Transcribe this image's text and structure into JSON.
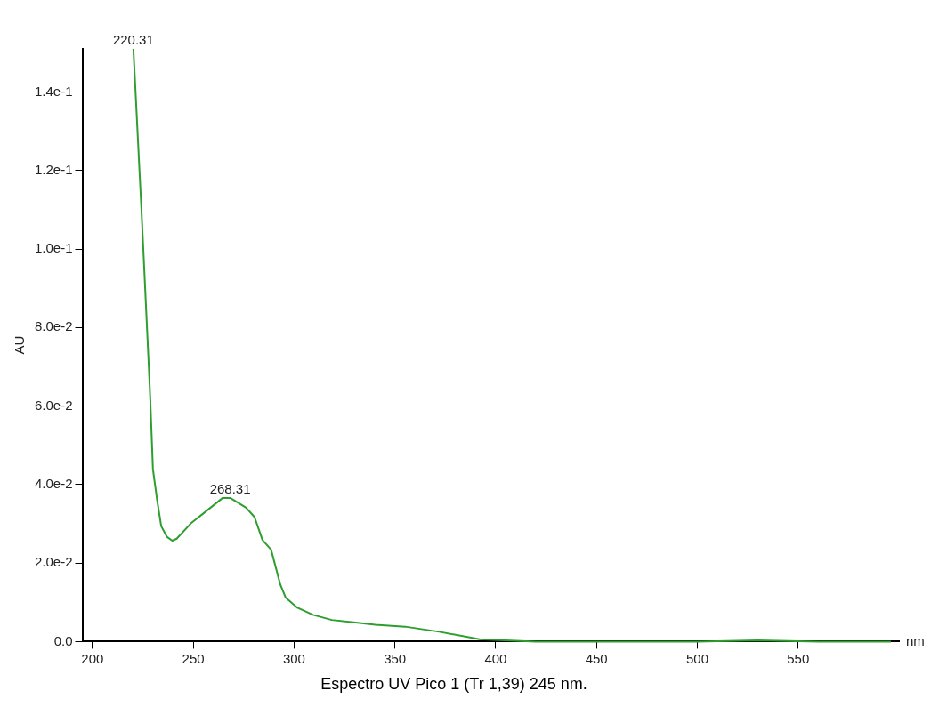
{
  "chart_data": {
    "type": "line",
    "title": "Espectro UV Pico 1 (Tr 1,39) 245 nm.",
    "xlabel": "nm",
    "ylabel": "AU",
    "xlim": [
      195,
      600
    ],
    "xticks": [
      200,
      250,
      300,
      350,
      400,
      450,
      500,
      550
    ],
    "ylim": [
      0,
      0.151
    ],
    "yticks": [
      {
        "value": 0,
        "label": "0.0"
      },
      {
        "value": 0.02,
        "label": "2.0e-2"
      },
      {
        "value": 0.04,
        "label": "4.0e-2"
      },
      {
        "value": 0.06,
        "label": "6.0e-2"
      },
      {
        "value": 0.08,
        "label": "8.0e-2"
      },
      {
        "value": 0.1,
        "label": "1.0e-1"
      },
      {
        "value": 0.12,
        "label": "1.2e-1"
      },
      {
        "value": 0.14,
        "label": "1.4e-1"
      }
    ],
    "grid": false,
    "legend": false,
    "marker": "none",
    "line_style": "solid",
    "x": [
      220.31,
      224.5,
      227.9,
      228.7,
      230.0,
      232.0,
      234.1,
      236.9,
      239.6,
      241.8,
      249.2,
      255.4,
      264.6,
      268.31,
      276.2,
      280.4,
      284.3,
      288.6,
      293.2,
      295.8,
      301.7,
      309.4,
      318.7,
      329.5,
      340.3,
      355.1,
      372,
      392,
      420,
      500,
      530,
      560,
      596
    ],
    "series": [
      {
        "color": "#2e9e2e",
        "values": [
          0.151,
          0.108,
          0.0707,
          0.0615,
          0.0439,
          0.0363,
          0.0294,
          0.0267,
          0.0257,
          0.0262,
          0.0303,
          0.0328,
          0.0366,
          0.0366,
          0.0341,
          0.0317,
          0.0259,
          0.0234,
          0.0145,
          0.0112,
          0.0086,
          0.0068,
          0.0055,
          0.0049,
          0.0043,
          0.0038,
          0.0025,
          0.0006,
          0,
          0,
          0.0003,
          0,
          0
        ]
      }
    ],
    "annotations": [
      {
        "text": "220.31",
        "x": 220.31,
        "y": 0.151
      },
      {
        "text": "268.31",
        "x": 268.31,
        "y": 0.0366
      }
    ]
  }
}
